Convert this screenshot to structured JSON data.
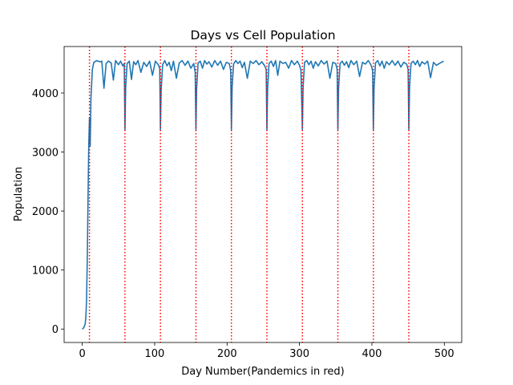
{
  "chart_data": {
    "type": "line",
    "title": "Days vs Cell Population",
    "xlabel": "Day Number(Pandemics in red)",
    "ylabel": "Population",
    "xlim": [
      -25,
      524
    ],
    "ylim": [
      -228,
      4788
    ],
    "xticks": [
      0,
      100,
      200,
      300,
      400,
      500
    ],
    "yticks": [
      0,
      1000,
      2000,
      3000,
      4000
    ],
    "series": [
      {
        "color": "#1f77b4",
        "x": [
          0,
          2,
          4,
          5,
          6,
          7,
          8,
          9,
          10,
          11,
          12,
          14,
          16,
          20,
          24,
          27,
          30,
          33,
          36,
          40,
          43,
          46,
          50,
          53,
          56,
          58,
          59,
          60,
          62,
          65,
          68,
          71,
          74,
          77,
          81,
          85,
          89,
          93,
          97,
          101,
          105,
          107,
          108,
          109,
          111,
          114,
          117,
          120,
          123,
          126,
          130,
          134,
          138,
          142,
          146,
          150,
          154,
          156,
          157,
          158,
          160,
          163,
          166,
          169,
          172,
          175,
          179,
          183,
          187,
          191,
          195,
          199,
          203,
          205,
          206,
          207,
          209,
          212,
          215,
          218,
          221,
          224,
          228,
          232,
          236,
          240,
          244,
          248,
          252,
          254,
          255,
          256,
          258,
          261,
          264,
          267,
          270,
          273,
          277,
          281,
          285,
          289,
          293,
          297,
          300,
          302,
          304,
          305,
          307,
          310,
          313,
          316,
          319,
          322,
          326,
          330,
          334,
          338,
          342,
          346,
          350,
          352,
          353,
          354,
          356,
          359,
          362,
          365,
          368,
          371,
          375,
          379,
          383,
          387,
          391,
          395,
          399,
          401,
          402,
          403,
          405,
          408,
          411,
          414,
          417,
          420,
          424,
          428,
          432,
          436,
          440,
          444,
          448,
          450,
          451,
          452,
          454,
          457,
          460,
          463,
          466,
          469,
          473,
          477,
          481,
          485,
          489,
          493,
          496,
          499
        ],
        "values": [
          0,
          20,
          80,
          200,
          500,
          1200,
          2200,
          3100,
          3580,
          3100,
          3900,
          4400,
          4520,
          4550,
          4530,
          4540,
          4080,
          4500,
          4540,
          4510,
          4220,
          4550,
          4480,
          4540,
          4460,
          4500,
          3380,
          4100,
          4500,
          4540,
          4230,
          4530,
          4480,
          4550,
          4350,
          4520,
          4450,
          4540,
          4300,
          4540,
          4480,
          4420,
          3380,
          4050,
          4480,
          4550,
          4460,
          4520,
          4380,
          4540,
          4250,
          4510,
          4550,
          4470,
          4540,
          4420,
          4500,
          4350,
          3380,
          4080,
          4510,
          4540,
          4420,
          4550,
          4490,
          4530,
          4440,
          4550,
          4470,
          4540,
          4400,
          4520,
          4500,
          4380,
          3380,
          4100,
          4490,
          4550,
          4500,
          4540,
          4430,
          4520,
          4250,
          4540,
          4500,
          4550,
          4480,
          4530,
          4460,
          4400,
          3380,
          4080,
          4500,
          4540,
          4450,
          4550,
          4300,
          4540,
          4500,
          4520,
          4420,
          4550,
          4480,
          4540,
          4470,
          4390,
          3380,
          4100,
          4520,
          4550,
          4480,
          4540,
          4420,
          4530,
          4460,
          4550,
          4490,
          4540,
          4250,
          4520,
          4500,
          4400,
          3380,
          4080,
          4500,
          4540,
          4470,
          4530,
          4430,
          4550,
          4480,
          4540,
          4280,
          4520,
          4490,
          4550,
          4470,
          4380,
          3380,
          4090,
          4510,
          4550,
          4460,
          4540,
          4420,
          4530,
          4480,
          4550,
          4470,
          4540,
          4440,
          4520,
          4490,
          4400,
          3380,
          4100,
          4500,
          4540,
          4480,
          4550,
          4450,
          4530,
          4490,
          4540,
          4260,
          4520,
          4470,
          4500,
          4520,
          4540
        ]
      }
    ],
    "vlines": {
      "color": "red",
      "x": [
        10,
        59,
        108,
        157,
        206,
        255,
        304,
        353,
        402,
        451
      ]
    }
  }
}
